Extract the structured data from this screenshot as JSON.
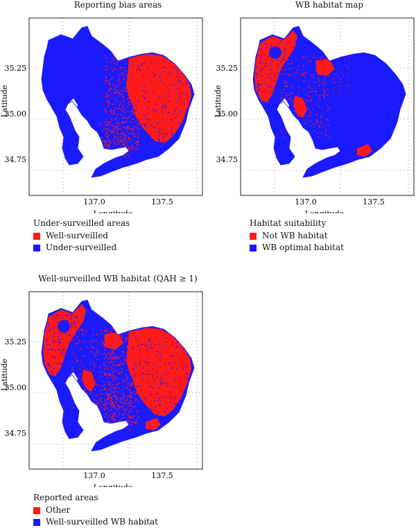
{
  "colors": {
    "red": "#ff1a1a",
    "blue": "#1a1aff",
    "frame": "#222222"
  },
  "axes": {
    "xlabel": "Longitude",
    "ylabel": "Latitude",
    "xticks": [
      "137.0",
      "137.5"
    ],
    "yticks": [
      "35.25",
      "35.00",
      "34.75"
    ]
  },
  "panels": [
    {
      "title": "Reporting bias areas",
      "legend_title": "Under-surveilled areas",
      "legend": [
        {
          "label": "Well-surveilled",
          "color": "#ff1a1a"
        },
        {
          "label": "Under-surveilled",
          "color": "#1a1aff"
        }
      ]
    },
    {
      "title": "WB habitat map",
      "legend_title": "Habitat suitability",
      "legend": [
        {
          "label": "Not WB habitat",
          "color": "#ff1a1a"
        },
        {
          "label": "WB optimal habitat",
          "color": "#1a1aff"
        }
      ]
    },
    {
      "title": "Well-surveilled WB habitat (QAH ≥ 1)",
      "legend_title": "Reported areas",
      "legend": [
        {
          "label": "Other",
          "color": "#ff1a1a"
        },
        {
          "label": "Well-surveilled WB habitat",
          "color": "#1a1aff"
        }
      ]
    }
  ]
}
